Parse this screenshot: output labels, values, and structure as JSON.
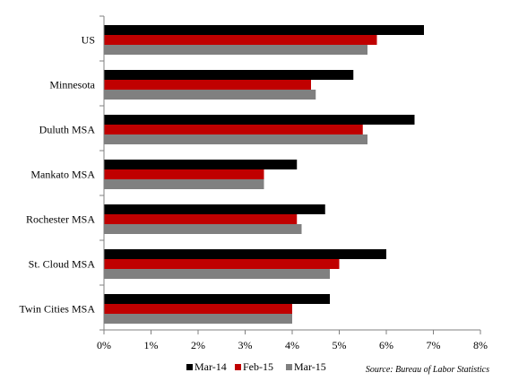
{
  "chart_data": {
    "type": "bar",
    "orientation": "horizontal",
    "categories": [
      "US",
      "Minnesota",
      "Duluth MSA",
      "Mankato MSA",
      "Rochester MSA",
      "St. Cloud MSA",
      "Twin Cities MSA"
    ],
    "series": [
      {
        "name": "Mar-14",
        "color": "#000000",
        "values": [
          6.8,
          5.3,
          6.6,
          4.1,
          4.7,
          6.0,
          4.8
        ]
      },
      {
        "name": "Feb-15",
        "color": "#c00000",
        "values": [
          5.8,
          4.4,
          5.5,
          3.4,
          4.1,
          5.0,
          4.0
        ]
      },
      {
        "name": "Mar-15",
        "color": "#808080",
        "values": [
          5.6,
          4.5,
          5.6,
          3.4,
          4.2,
          4.8,
          4.0
        ]
      }
    ],
    "xlim": [
      0,
      8
    ],
    "xticks": [
      "0%",
      "1%",
      "2%",
      "3%",
      "4%",
      "5%",
      "6%",
      "7%",
      "8%"
    ],
    "grid": false,
    "legend_position": "bottom",
    "source": "Source: Bureau of Labor Statistics"
  }
}
